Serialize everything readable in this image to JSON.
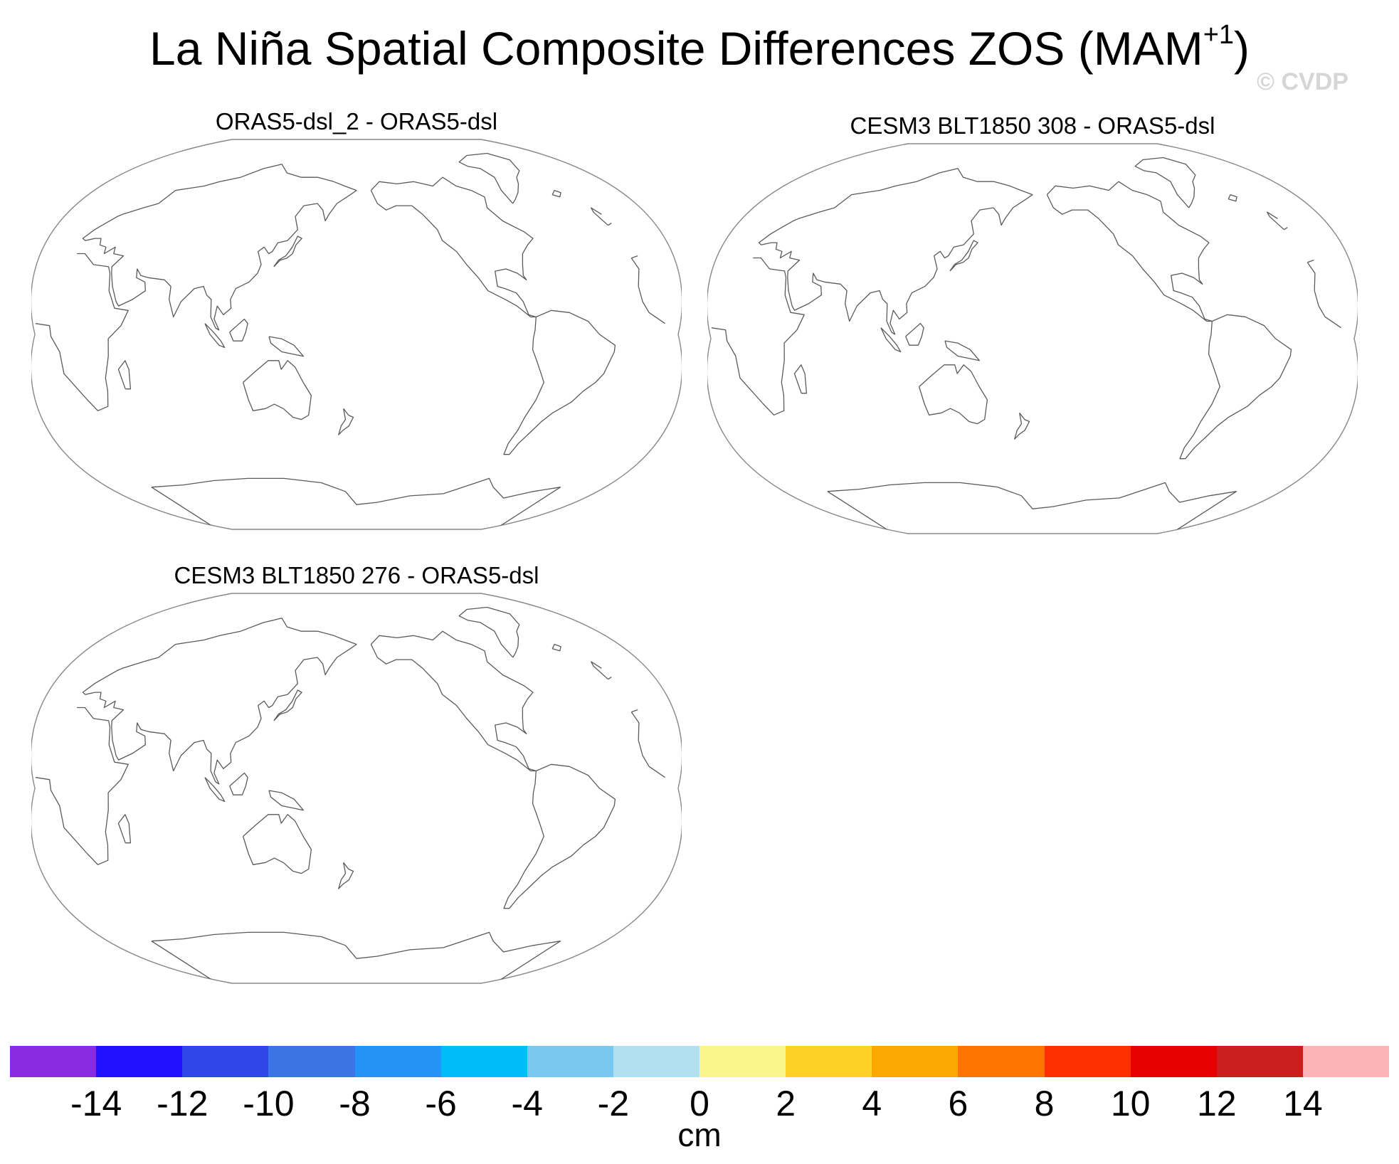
{
  "figure": {
    "title_main": "La Niña Spatial Composite Differences ZOS (MAM",
    "title_sup": "+1",
    "title_end": ")",
    "watermark": "© CVDP"
  },
  "panels": [
    {
      "label": "ORAS5-dsl_2 - ORAS5-dsl"
    },
    {
      "label": "CESM3 BLT1850 308 - ORAS5-dsl"
    },
    {
      "label": "CESM3 BLT1850 276 - ORAS5-dsl"
    }
  ],
  "colorbar": {
    "units": "cm",
    "colors": [
      "#8a2be2",
      "#2010ff",
      "#2e46e8",
      "#3a75e3",
      "#2592f7",
      "#00bdf7",
      "#78c8f0",
      "#b1e0f3",
      "#fbf58c",
      "#fcd227",
      "#fca800",
      "#fd7500",
      "#fe3000",
      "#e60000",
      "#cb1e1e",
      "#fdb4b4"
    ],
    "ticks": [
      "-14",
      "-12",
      "-10",
      "-8",
      "-6",
      "-4",
      "-2",
      "0",
      "2",
      "4",
      "6",
      "8",
      "10",
      "12",
      "14"
    ]
  },
  "map_style": {
    "coast_color": "#5a5a5a",
    "outline_color": "#888888"
  }
}
